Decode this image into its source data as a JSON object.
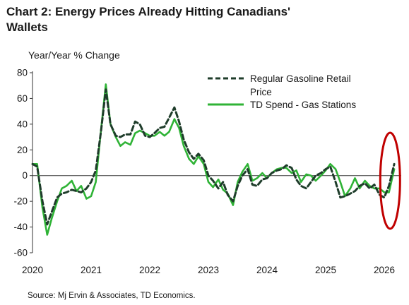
{
  "title": "Chart 2: Energy Prices Already Hitting Canadians' Wallets",
  "ylabel": "Year/Year % Change",
  "source": "Source: Mj Ervin & Associates, TD Economics.",
  "chart_data": {
    "type": "line",
    "xlabel": "",
    "ylabel": "Year/Year % Change",
    "ylim": [
      -60,
      80
    ],
    "yticks": [
      80,
      60,
      40,
      20,
      0,
      -20,
      -40,
      -60
    ],
    "xlim": [
      2020,
      2026.25
    ],
    "xticks": [
      "2020",
      "2021",
      "2022",
      "2023",
      "2024",
      "2025",
      "2026"
    ],
    "legend_position": "top-right",
    "grid": false,
    "highlight": {
      "type": "ellipse",
      "color": "#c00000",
      "x": 2026.1,
      "y": -4
    },
    "series": [
      {
        "name": "Regular Gasoline Retail Price",
        "color": "#1f3d2b",
        "style": "dashed",
        "points": [
          [
            2020.0,
            9
          ],
          [
            2020.08,
            7
          ],
          [
            2020.17,
            -20
          ],
          [
            2020.25,
            -38
          ],
          [
            2020.33,
            -28
          ],
          [
            2020.42,
            -17
          ],
          [
            2020.5,
            -14
          ],
          [
            2020.58,
            -13
          ],
          [
            2020.67,
            -11
          ],
          [
            2020.75,
            -12
          ],
          [
            2020.83,
            -13
          ],
          [
            2020.92,
            -10
          ],
          [
            2021.0,
            -5
          ],
          [
            2021.08,
            4
          ],
          [
            2021.17,
            35
          ],
          [
            2021.25,
            67
          ],
          [
            2021.33,
            40
          ],
          [
            2021.42,
            31
          ],
          [
            2021.5,
            30
          ],
          [
            2021.58,
            32
          ],
          [
            2021.67,
            32
          ],
          [
            2021.75,
            42
          ],
          [
            2021.83,
            40
          ],
          [
            2021.92,
            31
          ],
          [
            2022.0,
            30
          ],
          [
            2022.08,
            33
          ],
          [
            2022.17,
            37
          ],
          [
            2022.25,
            38
          ],
          [
            2022.33,
            45
          ],
          [
            2022.42,
            53
          ],
          [
            2022.5,
            42
          ],
          [
            2022.58,
            28
          ],
          [
            2022.67,
            18
          ],
          [
            2022.75,
            13
          ],
          [
            2022.83,
            17
          ],
          [
            2022.92,
            12
          ],
          [
            2023.0,
            0
          ],
          [
            2023.08,
            -4
          ],
          [
            2023.17,
            -10
          ],
          [
            2023.25,
            -5
          ],
          [
            2023.33,
            -15
          ],
          [
            2023.42,
            -20
          ],
          [
            2023.5,
            -8
          ],
          [
            2023.58,
            0
          ],
          [
            2023.67,
            5
          ],
          [
            2023.75,
            -7
          ],
          [
            2023.83,
            -8
          ],
          [
            2023.92,
            -3
          ],
          [
            2024.0,
            -2
          ],
          [
            2024.08,
            2
          ],
          [
            2024.17,
            4
          ],
          [
            2024.25,
            5
          ],
          [
            2024.33,
            8
          ],
          [
            2024.42,
            6
          ],
          [
            2024.5,
            -3
          ],
          [
            2024.58,
            -8
          ],
          [
            2024.67,
            -10
          ],
          [
            2024.75,
            -5
          ],
          [
            2024.83,
            0
          ],
          [
            2024.92,
            2
          ],
          [
            2025.0,
            5
          ],
          [
            2025.08,
            7
          ],
          [
            2025.17,
            -5
          ],
          [
            2025.25,
            -17
          ],
          [
            2025.33,
            -16
          ],
          [
            2025.42,
            -14
          ],
          [
            2025.5,
            -12
          ],
          [
            2025.58,
            -8
          ],
          [
            2025.67,
            -6
          ],
          [
            2025.75,
            -10
          ],
          [
            2025.83,
            -7
          ],
          [
            2025.92,
            -15
          ],
          [
            2026.0,
            -17
          ],
          [
            2026.08,
            -8
          ],
          [
            2026.17,
            9
          ]
        ]
      },
      {
        "name": "TD Spend - Gas Stations",
        "color": "#2fb336",
        "style": "solid",
        "points": [
          [
            2020.0,
            9
          ],
          [
            2020.08,
            9
          ],
          [
            2020.17,
            -25
          ],
          [
            2020.25,
            -46
          ],
          [
            2020.33,
            -33
          ],
          [
            2020.42,
            -20
          ],
          [
            2020.5,
            -10
          ],
          [
            2020.58,
            -8
          ],
          [
            2020.67,
            -4
          ],
          [
            2020.75,
            -12
          ],
          [
            2020.83,
            -8
          ],
          [
            2020.92,
            -18
          ],
          [
            2021.0,
            -16
          ],
          [
            2021.08,
            -5
          ],
          [
            2021.17,
            36
          ],
          [
            2021.25,
            71
          ],
          [
            2021.33,
            40
          ],
          [
            2021.42,
            30
          ],
          [
            2021.5,
            23
          ],
          [
            2021.58,
            26
          ],
          [
            2021.67,
            24
          ],
          [
            2021.75,
            33
          ],
          [
            2021.83,
            35
          ],
          [
            2021.92,
            33
          ],
          [
            2022.0,
            31
          ],
          [
            2022.08,
            31
          ],
          [
            2022.17,
            34
          ],
          [
            2022.25,
            31
          ],
          [
            2022.33,
            34
          ],
          [
            2022.42,
            44
          ],
          [
            2022.5,
            37
          ],
          [
            2022.58,
            23
          ],
          [
            2022.67,
            13
          ],
          [
            2022.75,
            9
          ],
          [
            2022.83,
            15
          ],
          [
            2022.92,
            9
          ],
          [
            2023.0,
            -5
          ],
          [
            2023.08,
            -9
          ],
          [
            2023.17,
            -3
          ],
          [
            2023.25,
            -11
          ],
          [
            2023.33,
            -14
          ],
          [
            2023.42,
            -23
          ],
          [
            2023.5,
            -5
          ],
          [
            2023.58,
            3
          ],
          [
            2023.67,
            9
          ],
          [
            2023.75,
            -4
          ],
          [
            2023.83,
            -2
          ],
          [
            2023.92,
            2
          ],
          [
            2024.0,
            -2
          ],
          [
            2024.08,
            2
          ],
          [
            2024.17,
            5
          ],
          [
            2024.25,
            6
          ],
          [
            2024.33,
            6
          ],
          [
            2024.42,
            2
          ],
          [
            2024.5,
            4
          ],
          [
            2024.58,
            -5
          ],
          [
            2024.67,
            1
          ],
          [
            2024.75,
            0
          ],
          [
            2024.83,
            -4
          ],
          [
            2024.92,
            0
          ],
          [
            2025.0,
            4
          ],
          [
            2025.08,
            9
          ],
          [
            2025.17,
            5
          ],
          [
            2025.25,
            -5
          ],
          [
            2025.33,
            -16
          ],
          [
            2025.42,
            -10
          ],
          [
            2025.5,
            -2
          ],
          [
            2025.58,
            -10
          ],
          [
            2025.67,
            -4
          ],
          [
            2025.75,
            -8
          ],
          [
            2025.83,
            -10
          ],
          [
            2025.92,
            -10
          ],
          [
            2026.0,
            -13
          ],
          [
            2026.08,
            -13
          ],
          [
            2026.17,
            5
          ]
        ]
      }
    ]
  }
}
